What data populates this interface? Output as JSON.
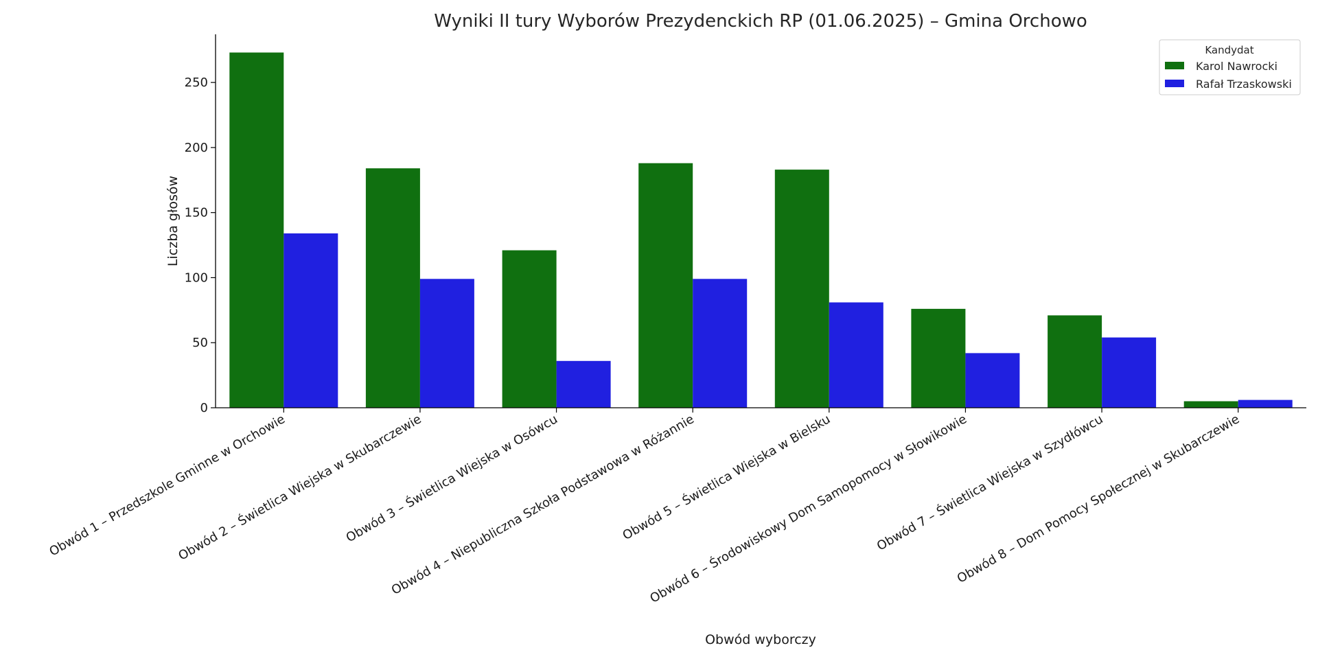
{
  "chart_data": {
    "type": "bar",
    "title": "Wyniki II tury Wyborów Prezydenckich RP (01.06.2025) – Gmina Orchowo",
    "xlabel": "Obwód wyborczy",
    "ylabel": "Liczba głosów",
    "ylim": [
      0,
      287
    ],
    "yticks": [
      0,
      50,
      100,
      150,
      200,
      250
    ],
    "grid": false,
    "legend": {
      "title": "Kandydat",
      "placement": "top-right"
    },
    "categories": [
      "Obwód 1 – Przedszkole Gminne w Orchowie",
      "Obwód 2 – Świetlica Wiejska w Skubarczewie",
      "Obwód 3 – Świetlica Wiejska w Osówcu",
      "Obwód 4 – Niepubliczna Szkoła Podstawowa w Różannie",
      "Obwód 5 – Świetlica Wiejska w Bielsku",
      "Obwód 6 – Środowiskowy Dom Samopomocy w Słowikowie",
      "Obwód 7 – Świetlica Wiejska w Szydłówcu",
      "Obwód 8 – Dom Pomocy Społecznej w Skubarczewie"
    ],
    "series": [
      {
        "name": "Karol Nawrocki",
        "color": "#107010",
        "values": [
          273,
          184,
          121,
          188,
          183,
          76,
          71,
          5
        ]
      },
      {
        "name": "Rafał Trzaskowski",
        "color": "#2020e0",
        "values": [
          134,
          99,
          36,
          99,
          81,
          42,
          54,
          6
        ]
      }
    ]
  }
}
